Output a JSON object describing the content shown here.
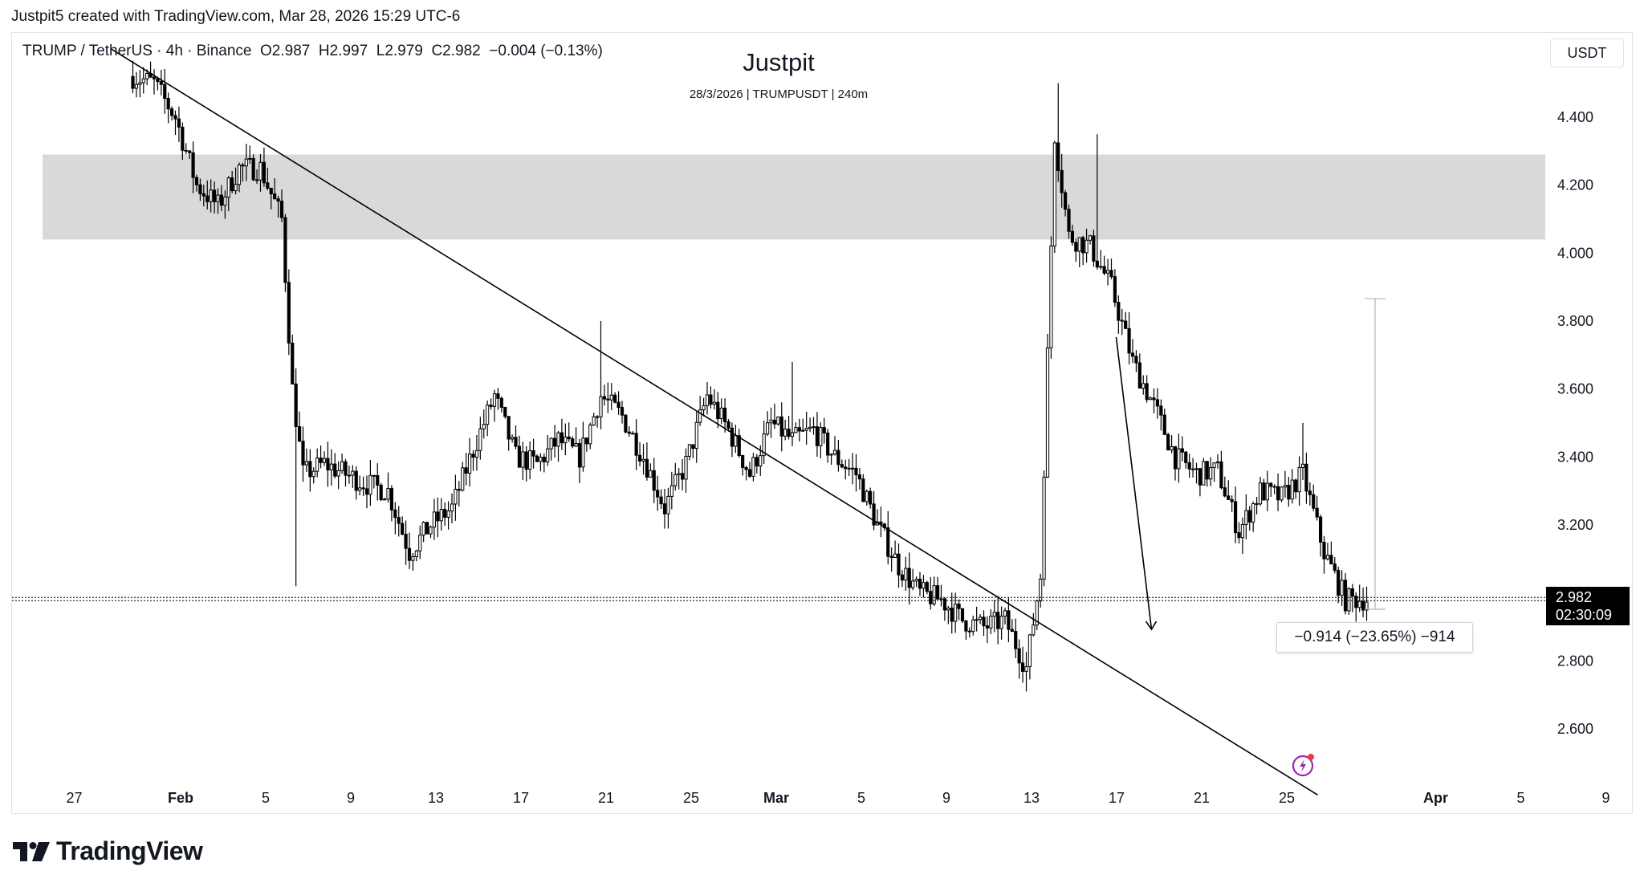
{
  "credit": "Justpit5 created with TradingView.com, Mar 28, 2026 15:29 UTC-6",
  "legend": {
    "symbol": "TRUMP / TetherUS · 4h · Binance",
    "open": "O2.987",
    "high": "H2.997",
    "low": "L2.979",
    "close": "C2.982",
    "change": "−0.004 (−0.13%)"
  },
  "watermark": {
    "title": "Justpit",
    "subtitle": "28/3/2026 | TRUMPUSDT | 240m"
  },
  "currency_button": "USDT",
  "price_tag": {
    "price": "2.982",
    "countdown": "02:30:09"
  },
  "measure_label": "−0.914 (−23.65%) −914",
  "brand": "TradingView",
  "icons": {
    "logo": "tradingview-logo-icon",
    "alert": "lightning-alert-icon"
  },
  "colors": {
    "candles": "#000000",
    "zone": "#d9d9d9",
    "price_tag_bg": "#000000",
    "alert_accent": "#9c27b0",
    "alert_dot": "#f23645"
  },
  "chart_data": {
    "type": "candlestick",
    "timeframe": "4h",
    "y_axis": {
      "min": 2.5,
      "max": 4.6,
      "ticks": [
        "2.600",
        "2.800",
        "3.200",
        "3.400",
        "3.600",
        "3.800",
        "4.000",
        "4.200",
        "4.400"
      ]
    },
    "x_axis": {
      "ticks": [
        "27",
        "Feb",
        "5",
        "9",
        "13",
        "17",
        "21",
        "25",
        "Mar",
        "5",
        "9",
        "13",
        "17",
        "21",
        "25",
        "Apr",
        "5",
        "9"
      ]
    },
    "price_path": [
      {
        "date": "2026-01-29",
        "price": 4.52
      },
      {
        "date": "2026-01-30",
        "price": 4.5
      },
      {
        "date": "2026-01-31",
        "price": 4.4
      },
      {
        "date": "2026-02-01",
        "price": 4.2
      },
      {
        "date": "2026-02-02",
        "price": 4.14
      },
      {
        "date": "2026-02-03",
        "price": 4.25
      },
      {
        "date": "2026-02-04",
        "price": 4.25
      },
      {
        "date": "2026-02-05",
        "price": 4.1
      },
      {
        "date": "2026-02-05T12",
        "price": 3.6
      },
      {
        "date": "2026-02-06",
        "price": 3.35
      },
      {
        "date": "2026-02-07",
        "price": 3.38
      },
      {
        "date": "2026-02-08",
        "price": 3.35
      },
      {
        "date": "2026-02-09",
        "price": 3.32
      },
      {
        "date": "2026-02-10",
        "price": 3.3
      },
      {
        "date": "2026-02-11",
        "price": 3.12
      },
      {
        "date": "2026-02-12",
        "price": 3.2
      },
      {
        "date": "2026-02-13",
        "price": 3.25
      },
      {
        "date": "2026-02-14",
        "price": 3.42
      },
      {
        "date": "2026-02-15",
        "price": 3.58
      },
      {
        "date": "2026-02-16",
        "price": 3.4
      },
      {
        "date": "2026-02-17",
        "price": 3.38
      },
      {
        "date": "2026-02-18",
        "price": 3.45
      },
      {
        "date": "2026-02-19",
        "price": 3.4
      },
      {
        "date": "2026-02-20",
        "price": 3.58
      },
      {
        "date": "2026-02-21",
        "price": 3.52
      },
      {
        "date": "2026-02-22",
        "price": 3.4
      },
      {
        "date": "2026-02-23",
        "price": 3.25
      },
      {
        "date": "2026-02-24",
        "price": 3.38
      },
      {
        "date": "2026-02-25",
        "price": 3.58
      },
      {
        "date": "2026-02-26",
        "price": 3.48
      },
      {
        "date": "2026-02-27",
        "price": 3.35
      },
      {
        "date": "2026-02-28",
        "price": 3.5
      },
      {
        "date": "2026-03-01",
        "price": 3.45
      },
      {
        "date": "2026-03-02",
        "price": 3.48
      },
      {
        "date": "2026-03-03",
        "price": 3.4
      },
      {
        "date": "2026-03-04",
        "price": 3.35
      },
      {
        "date": "2026-03-05",
        "price": 3.2
      },
      {
        "date": "2026-03-06",
        "price": 3.08
      },
      {
        "date": "2026-03-07",
        "price": 3.0
      },
      {
        "date": "2026-03-08",
        "price": 2.98
      },
      {
        "date": "2026-03-09",
        "price": 2.92
      },
      {
        "date": "2026-03-10",
        "price": 2.9
      },
      {
        "date": "2026-03-11",
        "price": 2.92
      },
      {
        "date": "2026-03-12",
        "price": 2.78
      },
      {
        "date": "2026-03-12T16",
        "price": 3.05
      },
      {
        "date": "2026-03-13",
        "price": 3.7
      },
      {
        "date": "2026-03-13T08",
        "price": 4.35
      },
      {
        "date": "2026-03-14",
        "price": 4.05
      },
      {
        "date": "2026-03-15",
        "price": 4.02
      },
      {
        "date": "2026-03-16",
        "price": 3.9
      },
      {
        "date": "2026-03-17",
        "price": 3.68
      },
      {
        "date": "2026-03-18",
        "price": 3.55
      },
      {
        "date": "2026-03-19",
        "price": 3.4
      },
      {
        "date": "2026-03-20",
        "price": 3.35
      },
      {
        "date": "2026-03-21",
        "price": 3.36
      },
      {
        "date": "2026-03-22",
        "price": 3.18
      },
      {
        "date": "2026-03-23",
        "price": 3.3
      },
      {
        "date": "2026-03-24",
        "price": 3.28
      },
      {
        "date": "2026-03-25",
        "price": 3.35
      },
      {
        "date": "2026-03-26",
        "price": 3.12
      },
      {
        "date": "2026-03-27",
        "price": 2.98
      },
      {
        "date": "2026-03-28",
        "price": 2.982
      }
    ],
    "spike_highs": [
      {
        "date": "2026-02-05T16",
        "low": 3.02
      },
      {
        "date": "2026-02-20",
        "high": 3.8
      },
      {
        "date": "2026-03-01",
        "high": 3.68
      },
      {
        "date": "2026-03-12",
        "low": 2.71
      },
      {
        "date": "2026-03-13T12",
        "high": 4.5
      },
      {
        "date": "2026-03-15T08",
        "high": 4.35
      },
      {
        "date": "2026-03-25",
        "high": 3.5
      }
    ],
    "last_price": 2.982,
    "resistance_zone": {
      "low": 4.04,
      "high": 4.29
    },
    "trendline": [
      {
        "date": "2026-01-28",
        "price": 4.6
      },
      {
        "date": "2026-03-26",
        "price": 2.5
      }
    ],
    "projection_arrow": [
      {
        "date": "2026-03-16",
        "price": 3.8
      },
      {
        "date": "2026-03-18",
        "price": 2.94
      }
    ],
    "measure_range": {
      "from": 3.866,
      "to": 2.952
    }
  }
}
